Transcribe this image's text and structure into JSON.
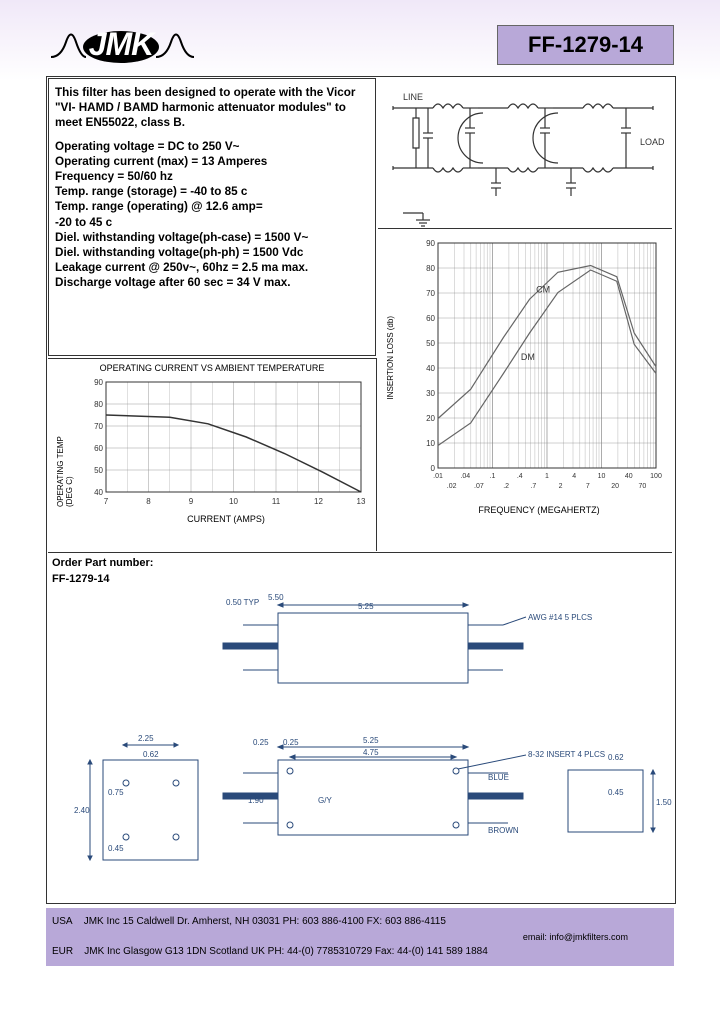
{
  "partNumber": "FF-1279-14",
  "logo": "JMK",
  "specs": {
    "intro": "This filter has been designed to operate with the Vicor \"VI- HAMD / BAMD harmonic attenuator modules\" to meet EN55022, class B.",
    "lines": [
      "Operating voltage = DC to 250 V~",
      "Operating current (max) = 13 Amperes",
      "Frequency = 50/60 hz",
      "Temp. range (storage) = -40 to 85 c",
      "Temp. range (operating) @ 12.6 amp=",
      "-20 to 45 c",
      "Diel. withstanding voltage(ph-case) = 1500 V~",
      "Diel. withstanding voltage(ph-ph) = 1500 Vdc",
      "Leakage current @ 250v~, 60hz = 2.5 ma max.",
      "Discharge voltage after 60 sec = 34 V max."
    ]
  },
  "schematic": {
    "leftLabel": "LINE",
    "rightLabel": "LOAD"
  },
  "chart1": {
    "title": "OPERATING CURRENT VS AMBIENT TEMPERATURE",
    "ylabel": "OPERATING TEMP (DEG C)",
    "xlabel": "CURRENT (AMPS)",
    "yticks": [
      "40",
      "50",
      "60",
      "70",
      "80",
      "90"
    ],
    "xticks": [
      "7",
      "8",
      "9",
      "10",
      "11",
      "12",
      "13"
    ],
    "curve": [
      [
        0,
        0.7
      ],
      [
        0.25,
        0.68
      ],
      [
        0.4,
        0.62
      ],
      [
        0.55,
        0.5
      ],
      [
        0.7,
        0.35
      ],
      [
        0.85,
        0.18
      ],
      [
        1,
        0
      ]
    ],
    "lineColor": "#333",
    "gridColor": "#999"
  },
  "chart2": {
    "ylabel": "INSERTION LOSS (db)",
    "xlabel": "FREQUENCY (MEGAHERTZ)",
    "yticks": [
      "0",
      "10",
      "20",
      "30",
      "40",
      "50",
      "60",
      "70",
      "80",
      "90"
    ],
    "xticks": [
      ".01",
      ".04",
      ".1",
      ".4",
      "1",
      "4",
      "10",
      "40",
      "100"
    ],
    "xticks2": [
      ".02",
      ".07",
      ".2",
      ".7",
      "2",
      "7",
      "20",
      "70"
    ],
    "cmLabel": "CM",
    "dmLabel": "DM",
    "cmCurve": [
      [
        0,
        0.22
      ],
      [
        0.15,
        0.35
      ],
      [
        0.3,
        0.58
      ],
      [
        0.42,
        0.75
      ],
      [
        0.55,
        0.87
      ],
      [
        0.7,
        0.9
      ],
      [
        0.82,
        0.85
      ],
      [
        0.9,
        0.6
      ],
      [
        1,
        0.45
      ]
    ],
    "dmCurve": [
      [
        0,
        0.1
      ],
      [
        0.15,
        0.2
      ],
      [
        0.3,
        0.42
      ],
      [
        0.42,
        0.6
      ],
      [
        0.55,
        0.78
      ],
      [
        0.7,
        0.88
      ],
      [
        0.82,
        0.83
      ],
      [
        0.9,
        0.55
      ],
      [
        1,
        0.42
      ]
    ],
    "lineColor": "#666",
    "gridColor": "#888"
  },
  "order": {
    "label": "Order Part number:",
    "value": "FF-1279-14"
  },
  "drawing": {
    "dims": [
      "5.50",
      "0.50 TYP",
      "5.25",
      "AWG #14 5 PLCS",
      "2.25",
      "0.62",
      "0.25",
      "0.25",
      "5.25",
      "4.75",
      "8-32 INSERT 4 PLCS",
      "0.62",
      "0.75",
      "1.90",
      "G/Y",
      "BLUE",
      "0.45",
      "2.40",
      "0.75",
      "0.45",
      "BROWN",
      "1.50"
    ]
  },
  "footer": {
    "usa": {
      "prefix": "USA",
      "text": "JMK Inc   15 Caldwell Dr.    Amherst, NH 03031       PH: 603 886-4100        FX: 603 886-4115"
    },
    "email": "email: info@jmkfilters.com",
    "eur": {
      "prefix": "EUR",
      "text": "JMK Inc   Glasgow  G13 1DN  Scotland UK     PH: 44-(0) 7785310729   Fax: 44-(0) 141 589 1884"
    }
  }
}
